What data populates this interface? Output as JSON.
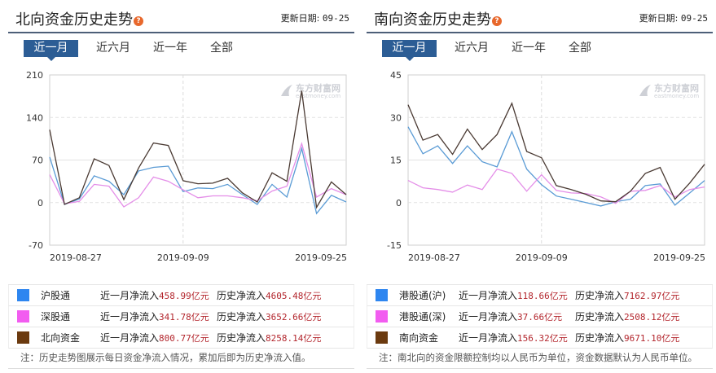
{
  "north": {
    "title": "北向资金历史走势",
    "update_label": "更新日期:",
    "update_date": "09-25",
    "tabs": [
      {
        "label": "近一月",
        "active": true
      },
      {
        "label": "近六月",
        "active": false
      },
      {
        "label": "近一年",
        "active": false
      },
      {
        "label": "全部",
        "active": false
      }
    ],
    "legend": [
      {
        "name": "沪股通",
        "color": "#2e86f0",
        "month_label": "近一月净流入",
        "month_value": "458.99亿元",
        "hist_label": "历史净流入",
        "hist_value": "4605.48亿元"
      },
      {
        "name": "深股通",
        "color": "#f25cf0",
        "month_label": "近一月净流入",
        "month_value": "341.78亿元",
        "hist_label": "历史净流入",
        "hist_value": "3652.66亿元"
      },
      {
        "name": "北向资金",
        "color": "#6b3a0f",
        "month_label": "近一月净流入",
        "month_value": "800.77亿元",
        "hist_label": "历史净流入",
        "hist_value": "8258.14亿元"
      }
    ],
    "note": "注：历史走势图展示每日资金净流入情况，累加后即为历史净流入值。"
  },
  "south": {
    "title": "南向资金历史走势",
    "update_label": "更新日期:",
    "update_date": "09-25",
    "tabs": [
      {
        "label": "近一月",
        "active": true
      },
      {
        "label": "近六月",
        "active": false
      },
      {
        "label": "近一年",
        "active": false
      },
      {
        "label": "全部",
        "active": false
      }
    ],
    "legend": [
      {
        "name": "港股通(沪)",
        "color": "#2e86f0",
        "month_label": "近一月净流入",
        "month_value": "118.66亿元",
        "hist_label": "历史净流入",
        "hist_value": "7162.97亿元"
      },
      {
        "name": "港股通(深)",
        "color": "#f25cf0",
        "month_label": "近一月净流入",
        "month_value": "37.66亿元",
        "hist_label": "历史净流入",
        "hist_value": "2508.12亿元"
      },
      {
        "name": "南向资金",
        "color": "#6b3a0f",
        "month_label": "近一月净流入",
        "month_value": "156.32亿元",
        "hist_label": "历史净流入",
        "hist_value": "9671.10亿元"
      }
    ],
    "note": "注：南北向的资金限额控制均以人民币为单位，资金数据默认为人民币单位。"
  },
  "watermark": {
    "cn": "东方财富网",
    "en": "eastmoney.com"
  },
  "chart_data": [
    {
      "type": "line",
      "title": "北向资金历史走势",
      "xlabel": "",
      "ylabel": "",
      "ylim": [
        -70,
        210
      ],
      "yticks": [
        210,
        140,
        70,
        0,
        -70
      ],
      "xtick_labels": [
        "2019-08-27",
        "2019-09-09",
        "2019-09-25"
      ],
      "xtick_index": [
        0,
        9,
        20
      ],
      "grid": true,
      "legend_position": "bottom-table",
      "series": [
        {
          "name": "沪股通",
          "color": "#5a9bd5",
          "values": [
            75,
            -3,
            6,
            44,
            35,
            13,
            52,
            58,
            60,
            18,
            24,
            23,
            30,
            13,
            -3,
            30,
            9,
            89,
            -18,
            12,
            1
          ]
        },
        {
          "name": "深股通",
          "color": "#e48ee8",
          "values": [
            46,
            -2,
            2,
            30,
            27,
            -7,
            8,
            42,
            35,
            21,
            8,
            11,
            11,
            8,
            3,
            19,
            27,
            97,
            9,
            23,
            13
          ]
        },
        {
          "name": "北向资金",
          "color": "#4a3a33",
          "values": [
            120,
            -3,
            8,
            72,
            61,
            5,
            57,
            98,
            94,
            36,
            31,
            32,
            40,
            16,
            1,
            49,
            35,
            184,
            -8,
            34,
            13
          ]
        }
      ]
    },
    {
      "type": "line",
      "title": "南向资金历史走势",
      "xlabel": "",
      "ylabel": "",
      "ylim": [
        -15,
        45
      ],
      "yticks": [
        45,
        30,
        15,
        0,
        -15
      ],
      "xtick_labels": [
        "2019-08-27",
        "2019-09-09",
        "2019-09-25"
      ],
      "xtick_index": [
        0,
        9,
        20
      ],
      "grid": true,
      "legend_position": "bottom-table",
      "series": [
        {
          "name": "港股通(沪)",
          "color": "#5a9bd5",
          "values": [
            26.7,
            17.2,
            20,
            13.8,
            20,
            14.4,
            12.6,
            25,
            11.8,
            6.3,
            2.3,
            1.2,
            0,
            -1.2,
            0.3,
            1.2,
            6,
            6.6,
            -0.9,
            3.4,
            7.8
          ]
        },
        {
          "name": "港股通(深)",
          "color": "#e48ee8",
          "values": [
            7.8,
            5.2,
            4.6,
            3.7,
            6.2,
            4.6,
            11.8,
            10.3,
            4,
            9.8,
            4.3,
            3.4,
            3.2,
            2,
            -0.3,
            4,
            4.3,
            6,
            2,
            4.6,
            5.5
          ]
        },
        {
          "name": "南向资金",
          "color": "#4a3a33",
          "values": [
            34.5,
            22,
            24,
            17,
            25.9,
            18.7,
            24,
            35,
            18,
            15.8,
            6,
            4.6,
            2.9,
            0.6,
            0.3,
            4,
            10.3,
            12.4,
            1.2,
            6.9,
            13.5
          ]
        }
      ]
    }
  ]
}
